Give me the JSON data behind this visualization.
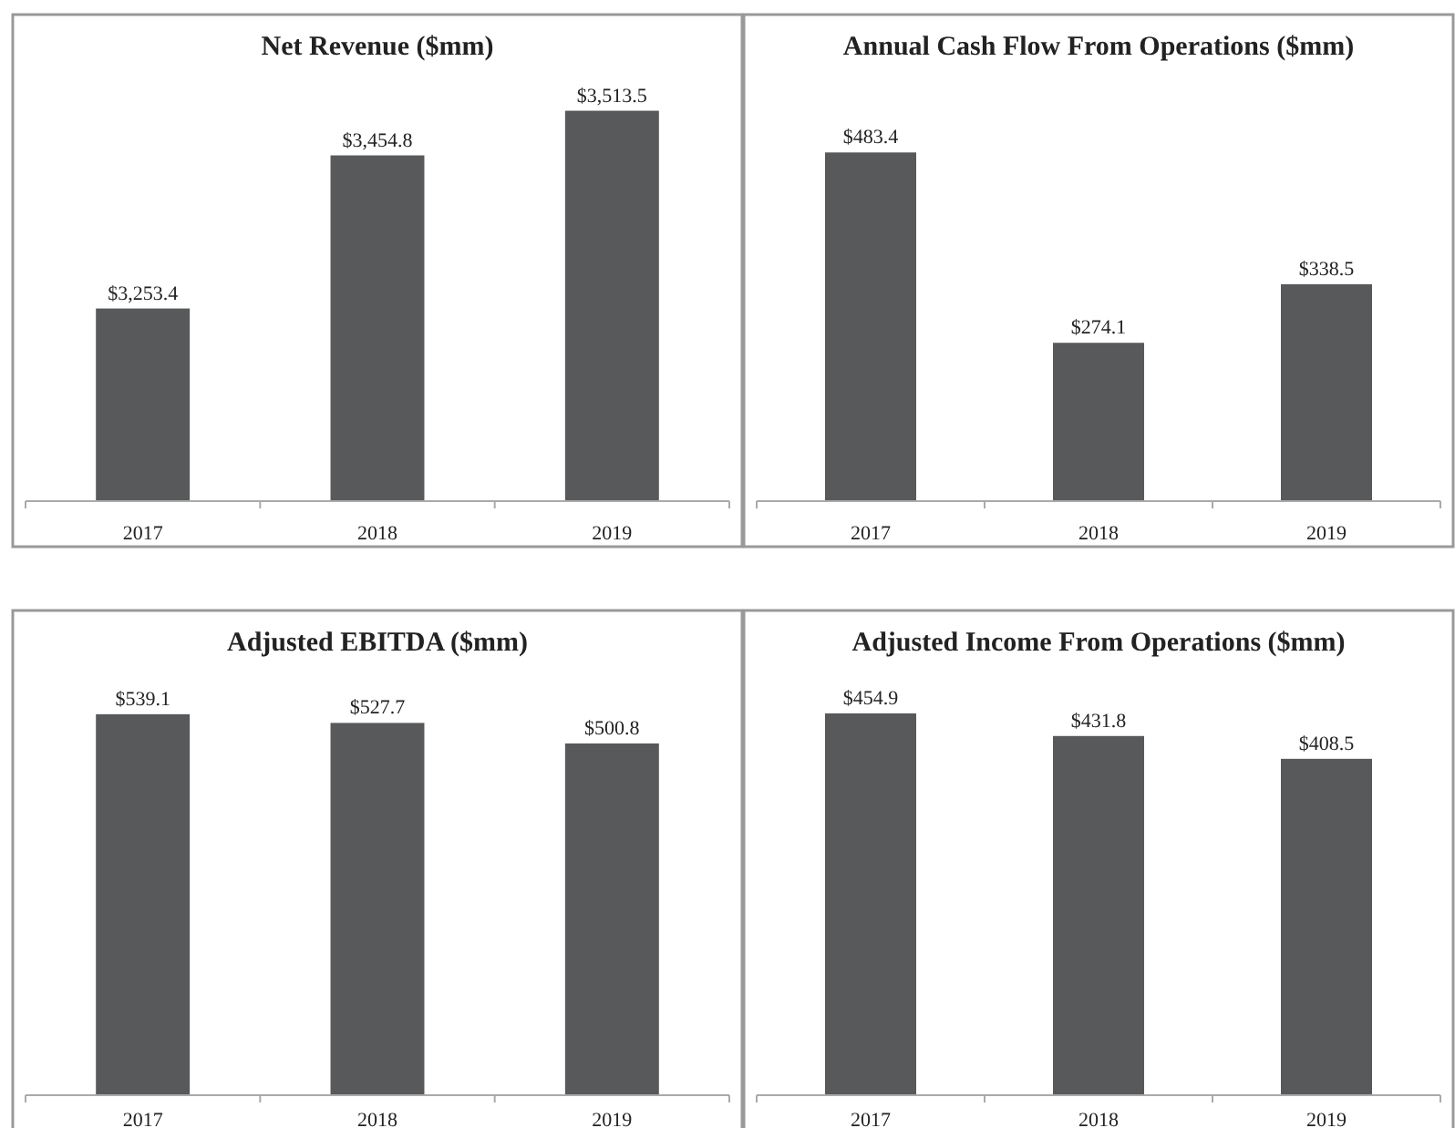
{
  "chart_data": [
    {
      "type": "bar",
      "title": "Net Revenue ($mm)",
      "categories": [
        "2017",
        "2018",
        "2019"
      ],
      "values": [
        3253.4,
        3454.8,
        3513.5
      ],
      "value_labels": [
        "$3,253.4",
        "$3,454.8",
        "$3,513.5"
      ],
      "color": "#58595b",
      "ylim": [
        3000,
        3640
      ],
      "tick_labels": "x"
    },
    {
      "type": "bar",
      "title": "Annual Cash Flow From Operations ($mm)",
      "categories": [
        "2017",
        "2018",
        "2019"
      ],
      "values": [
        483.4,
        274.1,
        338.5
      ],
      "value_labels": [
        "$483.4",
        "$274.1",
        "$338.5"
      ],
      "color": "#58595b",
      "ylim": [
        100,
        635
      ],
      "tick_labels": "x"
    },
    {
      "type": "bar",
      "title": "Adjusted EBITDA ($mm)",
      "categories": [
        "2017",
        "2018",
        "2019"
      ],
      "values": [
        539.1,
        527.7,
        500.8
      ],
      "value_labels": [
        "$539.1",
        "$527.7",
        "$500.8"
      ],
      "color": "#58595b",
      "ylim": [
        40,
        675
      ],
      "tick_labels": "x"
    },
    {
      "type": "bar",
      "title": "Adjusted Income From Operations ($mm)",
      "categories": [
        "2017",
        "2018",
        "2019"
      ],
      "values": [
        454.9,
        431.8,
        408.5
      ],
      "value_labels": [
        "$454.9",
        "$431.8",
        "$408.5"
      ],
      "color": "#58595b",
      "ylim": [
        65,
        560
      ],
      "tick_labels": "x"
    }
  ]
}
